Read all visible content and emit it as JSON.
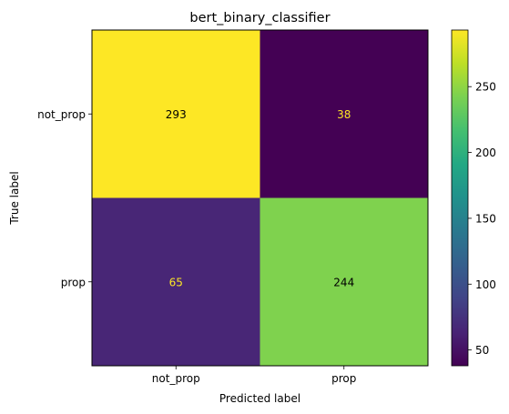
{
  "chart_data": {
    "type": "heatmap",
    "title": "bert_binary_classifier",
    "xlabel": "Predicted label",
    "ylabel": "True label",
    "x_categories": [
      "not_prop",
      "prop"
    ],
    "y_categories": [
      "not_prop",
      "prop"
    ],
    "values": [
      [
        293,
        38
      ],
      [
        65,
        244
      ]
    ],
    "colormap": "viridis",
    "color_range": [
      38,
      293
    ],
    "colorbar_ticks": [
      50,
      100,
      150,
      200,
      250
    ],
    "grid": false,
    "colors": {
      "low": "#440154",
      "high": "#fde725",
      "text_on_dark": "#fde725",
      "text_on_light": "#000000"
    }
  }
}
